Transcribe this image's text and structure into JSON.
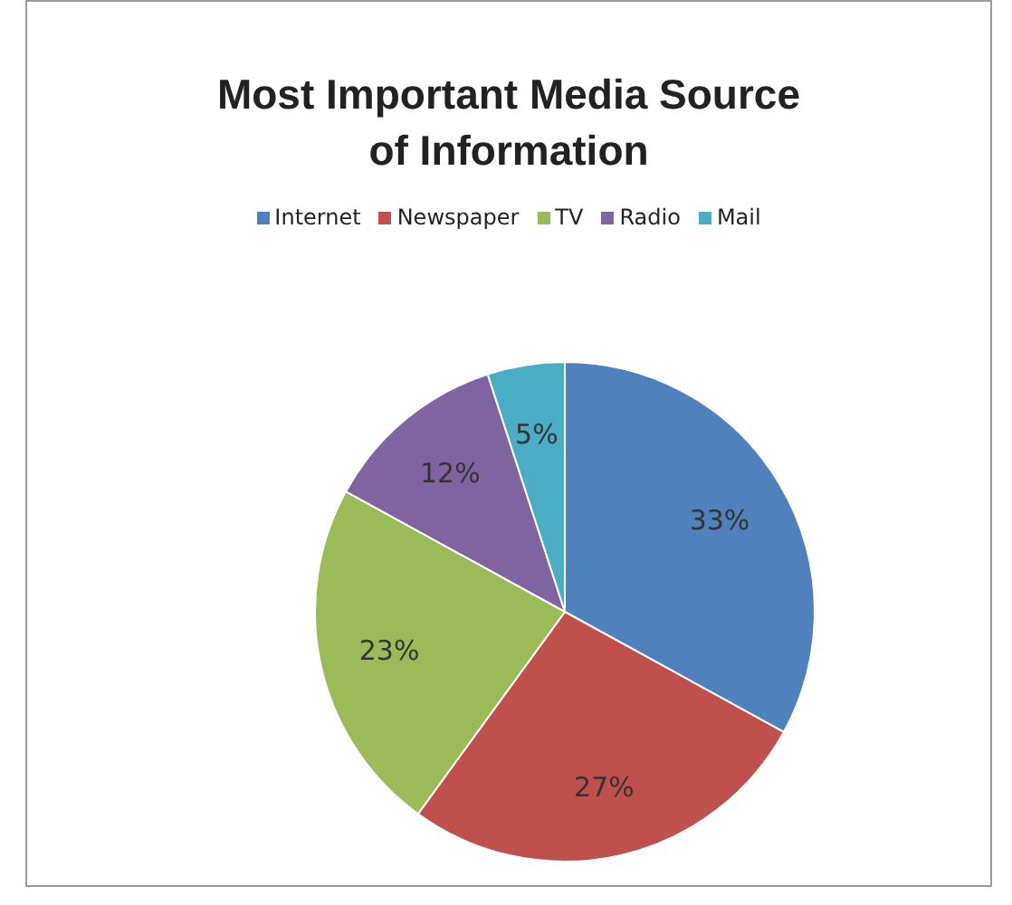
{
  "chart_data": {
    "type": "pie",
    "title": "Most Important Media Source of Information",
    "categories": [
      "Internet",
      "Newspaper",
      "TV",
      "Radio",
      "Mail"
    ],
    "values": [
      33,
      27,
      23,
      12,
      5
    ],
    "value_labels": [
      "33%",
      "27%",
      "23%",
      "12%",
      "5%"
    ],
    "colors": [
      "#4f81bd",
      "#c0504d",
      "#9bbb59",
      "#8064a2",
      "#4bacc6"
    ],
    "legend": "top"
  }
}
